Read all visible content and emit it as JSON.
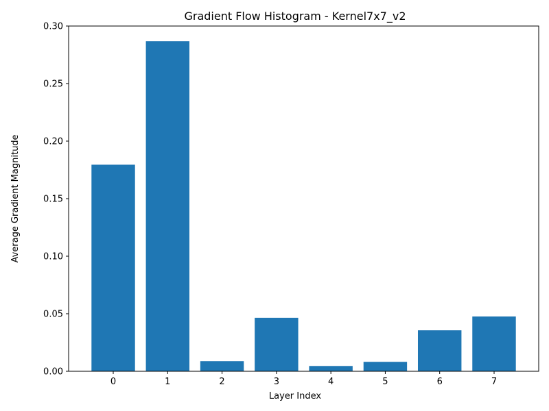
{
  "chart_data": {
    "type": "bar",
    "title": "Gradient Flow Histogram - Kernel7x7_v2",
    "xlabel": "Layer Index",
    "ylabel": "Average Gradient Magnitude",
    "categories": [
      "0",
      "1",
      "2",
      "3",
      "4",
      "5",
      "6",
      "7"
    ],
    "values": [
      0.1795,
      0.2868,
      0.0088,
      0.0465,
      0.0046,
      0.0082,
      0.0356,
      0.0476
    ],
    "ylim": [
      0,
      0.3
    ],
    "yticks": [
      "0.00",
      "0.05",
      "0.10",
      "0.15",
      "0.20",
      "0.25",
      "0.30"
    ],
    "grid": false,
    "bar_color": "#1f77b4"
  }
}
